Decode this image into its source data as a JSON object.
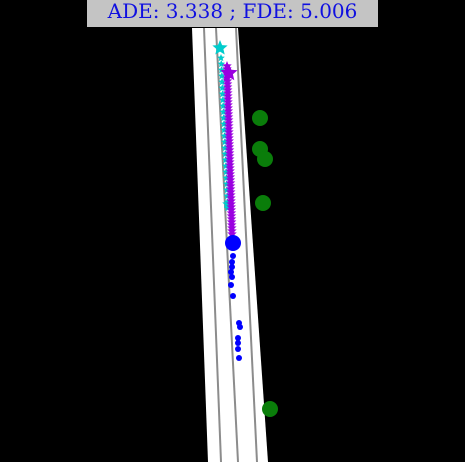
{
  "metrics": {
    "label": "ADE: 3.338 ; FDE: 5.006",
    "ade": 3.338,
    "fde": 5.006
  },
  "colors": {
    "background": "#000000",
    "road": "#ffffff",
    "lane_line": "#8c8c8c",
    "history": "#0000ff",
    "ground_truth": "#00cccc",
    "prediction": "#9a00e0",
    "neighbors": "#0a7d0a",
    "label_box": "#c4c4c4",
    "label_text": "#1010e0"
  },
  "legend": {
    "agent": "blue circle (current position) with blue dots (history)",
    "ground_truth": "cyan star markers",
    "prediction": "purple star markers",
    "neighbors": "green circles"
  }
}
